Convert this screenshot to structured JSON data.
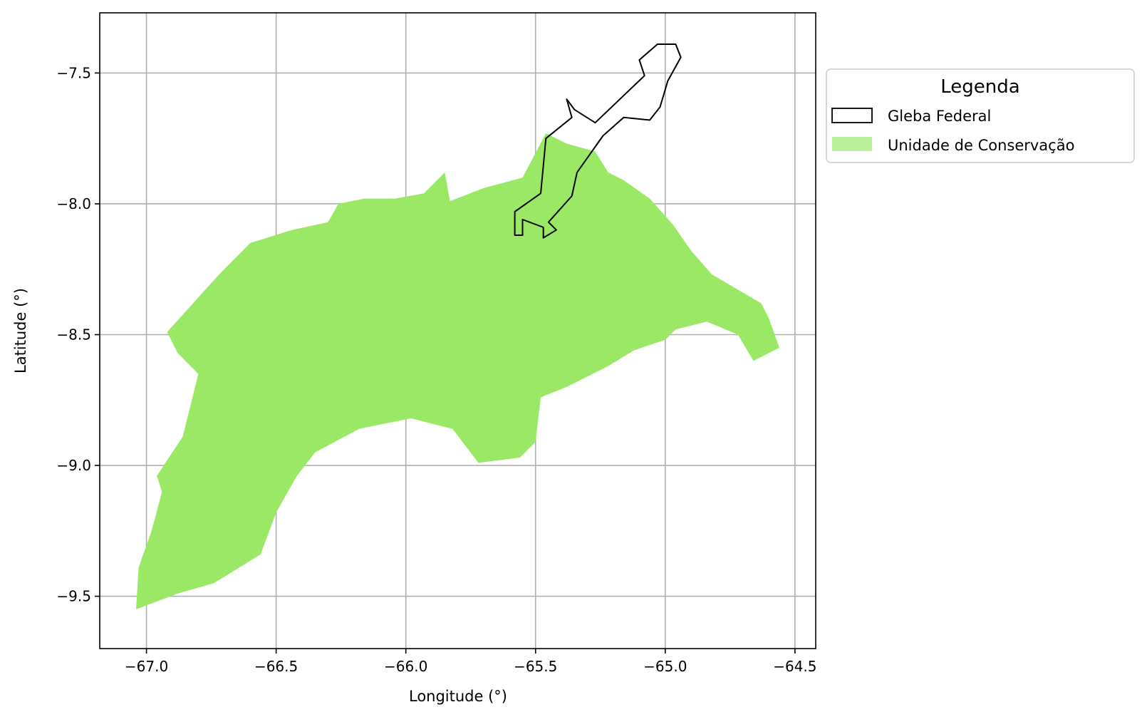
{
  "chart_data": {
    "type": "map",
    "xlabel": "Longitude (°)",
    "ylabel": "Latitude (°)",
    "xlim": [
      -67.18,
      -64.42
    ],
    "ylim": [
      -9.7,
      -7.27
    ],
    "x_ticks": [
      -67.0,
      -66.5,
      -66.0,
      -65.5,
      -65.0,
      -64.5
    ],
    "y_ticks": [
      -9.5,
      -9.0,
      -8.5,
      -8.0,
      -7.5
    ],
    "x_tick_labels": [
      "−67.0",
      "−66.5",
      "−66.0",
      "−65.5",
      "−65.0",
      "−64.5"
    ],
    "y_tick_labels": [
      "−9.5",
      "−9.0",
      "−8.5",
      "−8.0",
      "−7.5"
    ],
    "grid": true,
    "legend": {
      "title": "Legenda",
      "placement": "outside-right-top",
      "entries": [
        {
          "label": "Gleba Federal",
          "style": "outline",
          "color": "#000000"
        },
        {
          "label": "Unidade de Conservação",
          "style": "fill",
          "color": "#9ae865"
        }
      ]
    },
    "layers": [
      {
        "name": "Unidade de Conservação",
        "fill": "#9ae865",
        "outline": [
          [
            -67.04,
            -9.55
          ],
          [
            -66.88,
            -9.49
          ],
          [
            -66.74,
            -9.45
          ],
          [
            -66.56,
            -9.34
          ],
          [
            -66.5,
            -9.18
          ],
          [
            -66.42,
            -9.04
          ],
          [
            -66.35,
            -8.95
          ],
          [
            -66.18,
            -8.86
          ],
          [
            -65.98,
            -8.82
          ],
          [
            -65.82,
            -8.86
          ],
          [
            -65.72,
            -8.99
          ],
          [
            -65.56,
            -8.97
          ],
          [
            -65.5,
            -8.91
          ],
          [
            -65.48,
            -8.74
          ],
          [
            -65.38,
            -8.7
          ],
          [
            -65.22,
            -8.62
          ],
          [
            -65.12,
            -8.56
          ],
          [
            -65.0,
            -8.52
          ],
          [
            -64.96,
            -8.48
          ],
          [
            -64.84,
            -8.45
          ],
          [
            -64.72,
            -8.5
          ],
          [
            -64.66,
            -8.6
          ],
          [
            -64.56,
            -8.55
          ],
          [
            -64.6,
            -8.44
          ],
          [
            -64.63,
            -8.38
          ],
          [
            -64.82,
            -8.27
          ],
          [
            -64.9,
            -8.18
          ],
          [
            -64.97,
            -8.08
          ],
          [
            -65.06,
            -7.98
          ],
          [
            -65.16,
            -7.91
          ],
          [
            -65.22,
            -7.88
          ],
          [
            -65.27,
            -7.8
          ],
          [
            -65.38,
            -7.77
          ],
          [
            -65.46,
            -7.73
          ],
          [
            -65.55,
            -7.9
          ],
          [
            -65.7,
            -7.94
          ],
          [
            -65.83,
            -7.99
          ],
          [
            -65.85,
            -7.88
          ],
          [
            -65.93,
            -7.96
          ],
          [
            -66.04,
            -7.98
          ],
          [
            -66.16,
            -7.98
          ],
          [
            -66.26,
            -8.0
          ],
          [
            -66.3,
            -8.07
          ],
          [
            -66.44,
            -8.1
          ],
          [
            -66.6,
            -8.15
          ],
          [
            -66.72,
            -8.27
          ],
          [
            -66.92,
            -8.49
          ],
          [
            -66.88,
            -8.57
          ],
          [
            -66.8,
            -8.65
          ],
          [
            -66.86,
            -8.89
          ],
          [
            -66.96,
            -9.04
          ],
          [
            -66.94,
            -9.1
          ],
          [
            -66.98,
            -9.25
          ],
          [
            -67.03,
            -9.39
          ],
          [
            -67.04,
            -9.55
          ]
        ]
      },
      {
        "name": "Gleba Federal",
        "stroke": "#000000",
        "outline": [
          [
            -65.58,
            -8.12
          ],
          [
            -65.55,
            -8.12
          ],
          [
            -65.55,
            -8.06
          ],
          [
            -65.47,
            -8.09
          ],
          [
            -65.47,
            -8.13
          ],
          [
            -65.42,
            -8.1
          ],
          [
            -65.45,
            -8.07
          ],
          [
            -65.36,
            -7.97
          ],
          [
            -65.34,
            -7.88
          ],
          [
            -65.24,
            -7.74
          ],
          [
            -65.16,
            -7.67
          ],
          [
            -65.06,
            -7.68
          ],
          [
            -65.02,
            -7.63
          ],
          [
            -64.99,
            -7.53
          ],
          [
            -64.94,
            -7.44
          ],
          [
            -64.96,
            -7.39
          ],
          [
            -65.03,
            -7.39
          ],
          [
            -65.1,
            -7.45
          ],
          [
            -65.08,
            -7.51
          ],
          [
            -65.27,
            -7.69
          ],
          [
            -65.35,
            -7.64
          ],
          [
            -65.38,
            -7.6
          ],
          [
            -65.36,
            -7.67
          ],
          [
            -65.46,
            -7.75
          ],
          [
            -65.48,
            -7.96
          ],
          [
            -65.58,
            -8.03
          ],
          [
            -65.58,
            -8.12
          ]
        ]
      }
    ]
  }
}
